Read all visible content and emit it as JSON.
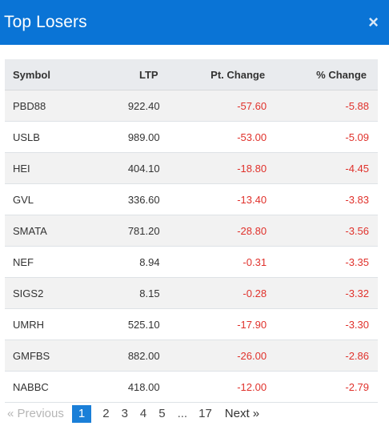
{
  "modal": {
    "title": "Top Losers",
    "close_glyph": "×"
  },
  "table": {
    "headers": {
      "symbol": "Symbol",
      "ltp": "LTP",
      "pt_change": "Pt. Change",
      "pct_change": "% Change"
    },
    "rows": [
      {
        "symbol": "PBD88",
        "ltp": "922.40",
        "pt_change": "-57.60",
        "pct_change": "-5.88"
      },
      {
        "symbol": "USLB",
        "ltp": "989.00",
        "pt_change": "-53.00",
        "pct_change": "-5.09"
      },
      {
        "symbol": "HEI",
        "ltp": "404.10",
        "pt_change": "-18.80",
        "pct_change": "-4.45"
      },
      {
        "symbol": "GVL",
        "ltp": "336.60",
        "pt_change": "-13.40",
        "pct_change": "-3.83"
      },
      {
        "symbol": "SMATA",
        "ltp": "781.20",
        "pt_change": "-28.80",
        "pct_change": "-3.56"
      },
      {
        "symbol": "NEF",
        "ltp": "8.94",
        "pt_change": "-0.31",
        "pct_change": "-3.35"
      },
      {
        "symbol": "SIGS2",
        "ltp": "8.15",
        "pt_change": "-0.28",
        "pct_change": "-3.32"
      },
      {
        "symbol": "UMRH",
        "ltp": "525.10",
        "pt_change": "-17.90",
        "pct_change": "-3.30"
      },
      {
        "symbol": "GMFBS",
        "ltp": "882.00",
        "pt_change": "-26.00",
        "pct_change": "-2.86"
      },
      {
        "symbol": "NABBC",
        "ltp": "418.00",
        "pt_change": "-12.00",
        "pct_change": "-2.79"
      }
    ]
  },
  "pagination": {
    "prev": "«  Previous",
    "pages": [
      "1",
      "2",
      "3",
      "4",
      "5"
    ],
    "ellipsis": "...",
    "last": "17",
    "next": "Next  »",
    "current_page": "1"
  },
  "colors": {
    "header_bg": "#0a74d6",
    "negative": "#e0312b",
    "active_page": "#1a7fd8"
  }
}
